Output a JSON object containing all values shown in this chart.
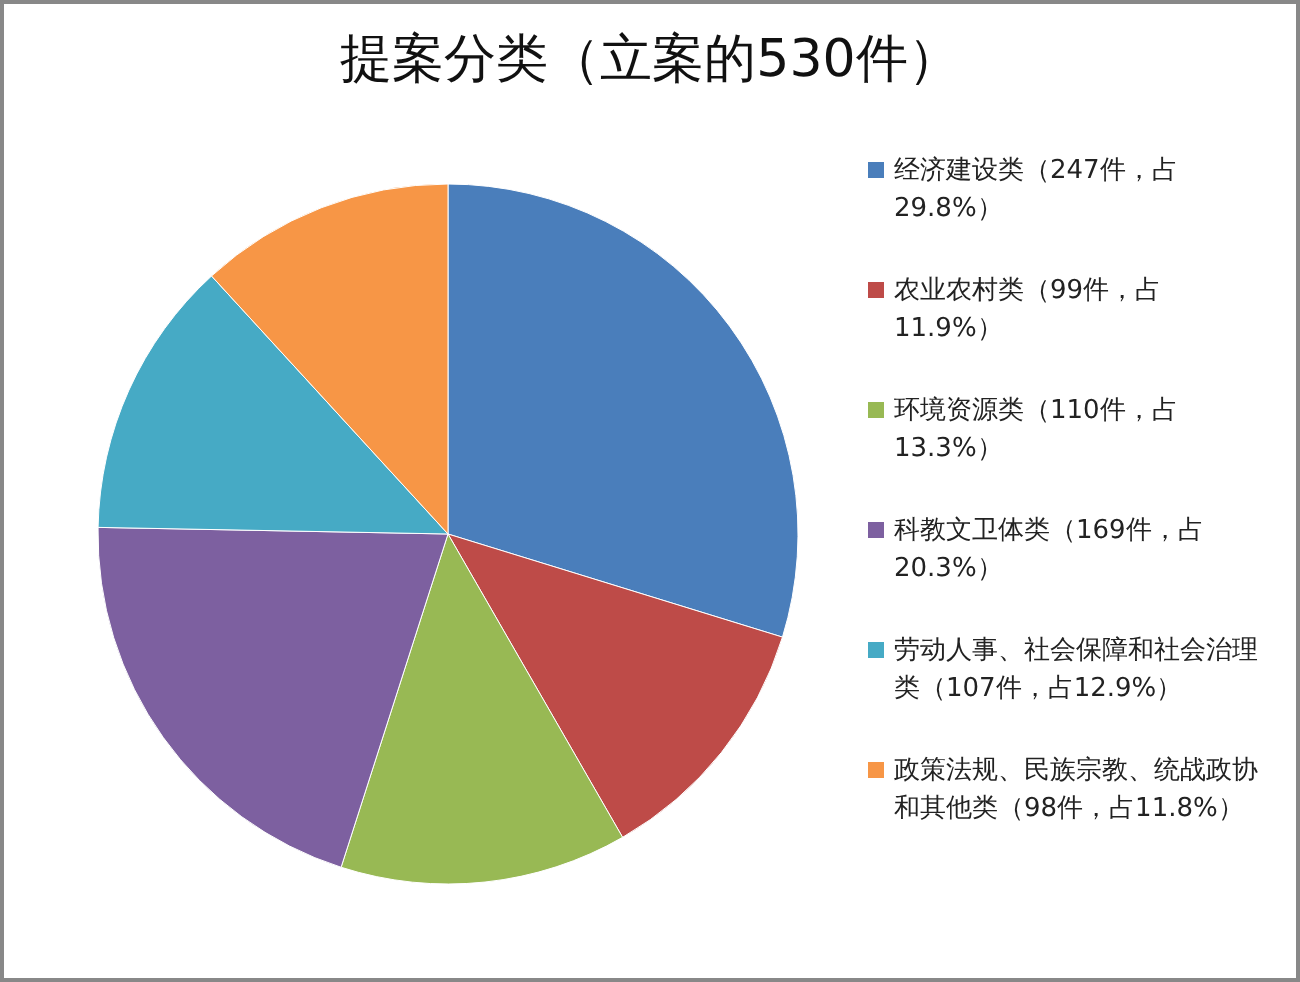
{
  "chart_data": {
    "type": "pie",
    "title": "提案分类（立案的530件）",
    "categories": [
      "经济建设类（247件，占29.8%）",
      "农业农村类（99件，占11.9%）",
      "环境资源类（110件，占13.3%）",
      "科教文卫体类（169件，占20.3%）",
      "劳动人事、社会保障和社会治理类（107件，占12.9%）",
      "政策法规、民族宗教、统战政协和其他类（98件，占11.8%）"
    ],
    "values": [
      247,
      99,
      110,
      169,
      107,
      98
    ],
    "colors": [
      "#4a7ebb",
      "#be4b48",
      "#98b954",
      "#7d60a0",
      "#46aac5",
      "#f79646"
    ],
    "legend": "right"
  }
}
